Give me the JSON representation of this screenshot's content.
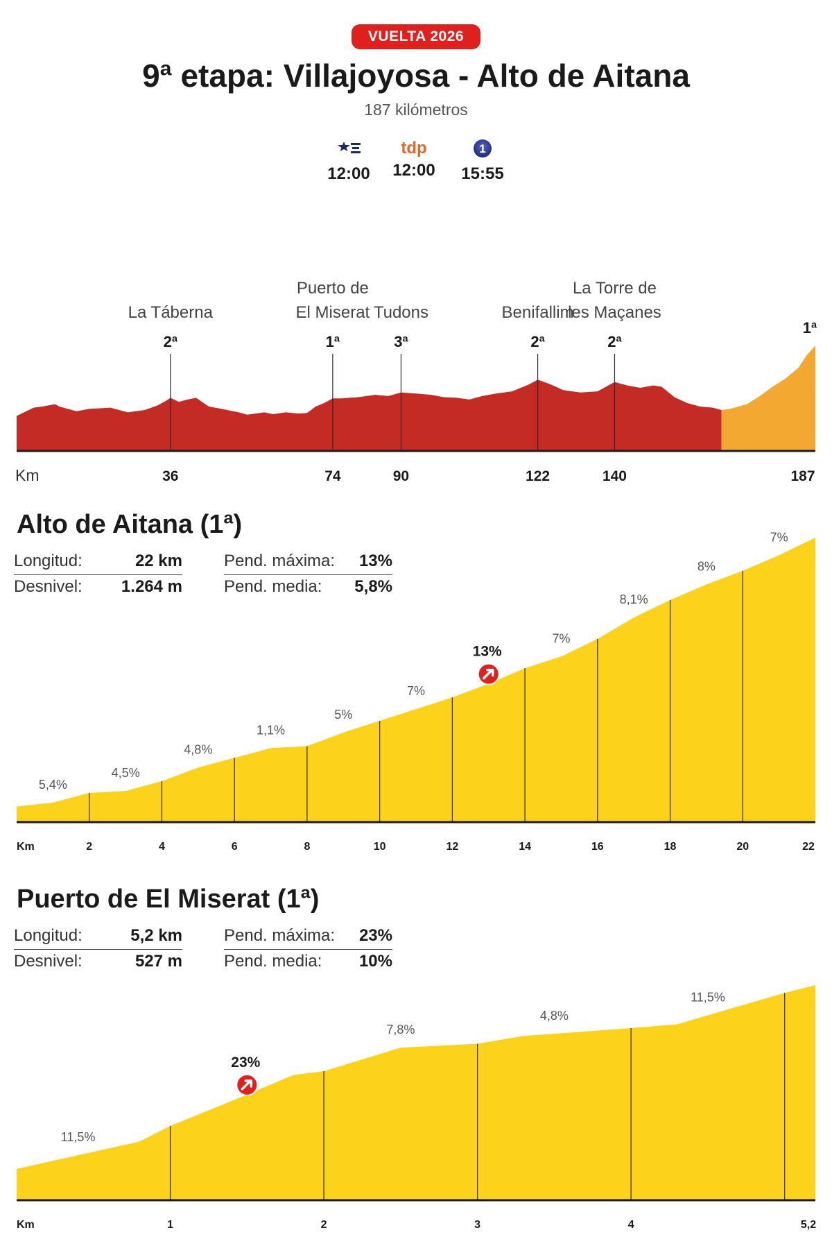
{
  "header": {
    "badge": "VUELTA 2026",
    "title": "9ª etapa: Villajoyosa - Alto de Aitana",
    "distance": "187 kilómetros",
    "broadcasts": [
      {
        "channel": "eurosport",
        "icon": "eurosport-icon",
        "time": "12:00"
      },
      {
        "channel": "tdp",
        "logo": "tdp",
        "time": "12:00"
      },
      {
        "channel": "la1",
        "logo": "1",
        "time": "15:55"
      }
    ]
  },
  "colors": {
    "stage_red": "#c32b24",
    "final_orange": "#f2a831",
    "climb_yellow": "#fdd21a",
    "badge_red": "#e0201d"
  },
  "chart_data": [
    {
      "type": "area",
      "id": "stage_profile",
      "xlabel": "Km",
      "tick_labels": [
        "36",
        "74",
        "90",
        "122",
        "140",
        "187"
      ],
      "tick_km": [
        36,
        74,
        90,
        122,
        140,
        187
      ],
      "final_climb_start_km": 165,
      "climbs": [
        {
          "name_lines": [
            "La Táberna"
          ],
          "cat": "2ª",
          "km": 36
        },
        {
          "name_lines": [
            "Puerto de",
            "El Miserat"
          ],
          "cat": "1ª",
          "km": 74
        },
        {
          "name_lines": [
            "Tudons"
          ],
          "cat": "3ª",
          "km": 90
        },
        {
          "name_lines": [
            "Benifallim"
          ],
          "cat": "2ª",
          "km": 122
        },
        {
          "name_lines": [
            "La Torre de",
            "les Maçanes"
          ],
          "cat": "2ª",
          "km": 140
        },
        {
          "name_lines": [],
          "cat": "1ª",
          "km": 187
        }
      ],
      "profile_km": [
        0,
        4,
        6,
        9,
        10,
        14,
        17,
        22,
        24,
        26,
        30,
        33,
        35,
        36,
        38,
        40,
        42,
        45,
        48,
        52,
        54,
        58,
        60,
        63,
        66,
        68,
        70,
        72,
        74,
        76,
        80,
        84,
        87,
        90,
        94,
        97,
        100,
        103,
        106,
        109,
        112,
        116,
        120,
        122,
        125,
        128,
        132,
        136,
        140,
        143,
        146,
        149,
        151,
        154,
        157,
        160,
        163,
        165,
        167,
        171,
        174,
        177,
        180,
        183,
        185,
        187
      ],
      "profile_elev": [
        300,
        370,
        380,
        400,
        380,
        340,
        360,
        370,
        350,
        330,
        350,
        390,
        430,
        455,
        420,
        440,
        455,
        380,
        360,
        330,
        310,
        330,
        315,
        330,
        320,
        325,
        380,
        410,
        450,
        450,
        460,
        480,
        470,
        500,
        490,
        480,
        460,
        455,
        440,
        470,
        490,
        510,
        570,
        610,
        570,
        520,
        500,
        510,
        590,
        560,
        540,
        560,
        550,
        460,
        410,
        380,
        370,
        350,
        360,
        400,
        470,
        550,
        620,
        710,
        820,
        900
      ]
    },
    {
      "type": "area",
      "id": "alto_de_aitana",
      "title": "Alto de Aitana (1ª)",
      "stats": {
        "longitud_label": "Longitud:",
        "longitud": "22 km",
        "desnivel_label": "Desnivel:",
        "desnivel": "1.264 m",
        "pend_max_label": "Pend. máxima:",
        "pend_max": "13%",
        "pend_media_label": "Pend. media:",
        "pend_media": "5,8%"
      },
      "xlabel": "Km",
      "x_ticks": [
        "2",
        "4",
        "6",
        "8",
        "10",
        "12",
        "14",
        "16",
        "18",
        "20",
        "22"
      ],
      "x": [
        0,
        1,
        2,
        3,
        4,
        5,
        6,
        7,
        8,
        9,
        10,
        11,
        12,
        13,
        14,
        15,
        16,
        17,
        18,
        19,
        20,
        21,
        22
      ],
      "elevation": [
        100,
        120,
        170,
        180,
        230,
        300,
        350,
        400,
        410,
        480,
        540,
        600,
        660,
        730,
        810,
        870,
        960,
        1070,
        1160,
        1240,
        1310,
        1390,
        1480
      ],
      "segments": [
        {
          "km": 1,
          "grade": "5,4%"
        },
        {
          "km": 3,
          "grade": "4,5%"
        },
        {
          "km": 5,
          "grade": "4,8%"
        },
        {
          "km": 7,
          "grade": "1,1%"
        },
        {
          "km": 9,
          "grade": "5%"
        },
        {
          "km": 11,
          "grade": "7%"
        },
        {
          "km": 15,
          "grade": "7%"
        },
        {
          "km": 17,
          "grade": "8,1%"
        },
        {
          "km": 19,
          "grade": "8%"
        },
        {
          "km": 21,
          "grade": "7%"
        }
      ],
      "max_marker": {
        "km": 13,
        "label": "13%"
      }
    },
    {
      "type": "area",
      "id": "puerto_de_el_miserat",
      "title": "Puerto de El Miserat (1ª)",
      "stats": {
        "longitud_label": "Longitud:",
        "longitud": "5,2 km",
        "desnivel_label": "Desnivel:",
        "desnivel": "527 m",
        "pend_max_label": "Pend. máxima:",
        "pend_max": "23%",
        "pend_media_label": "Pend. media:",
        "pend_media": "10%"
      },
      "xlabel": "Km",
      "x_ticks": [
        "1",
        "2",
        "3",
        "4",
        "5,2"
      ],
      "x": [
        0,
        0.8,
        1,
        1.5,
        1.8,
        2,
        2.5,
        3,
        3.3,
        4,
        4.3,
        5,
        5.2
      ],
      "elevation": [
        100,
        170,
        210,
        290,
        340,
        350,
        410,
        420,
        440,
        460,
        470,
        550,
        570
      ],
      "segments": [
        {
          "km": 0.4,
          "grade": "11,5%"
        },
        {
          "km": 2.5,
          "grade": "7,8%"
        },
        {
          "km": 3.5,
          "grade": "4,8%"
        },
        {
          "km": 4.5,
          "grade": "11,5%"
        }
      ],
      "max_marker": {
        "km": 1.5,
        "label": "23%"
      }
    }
  ]
}
